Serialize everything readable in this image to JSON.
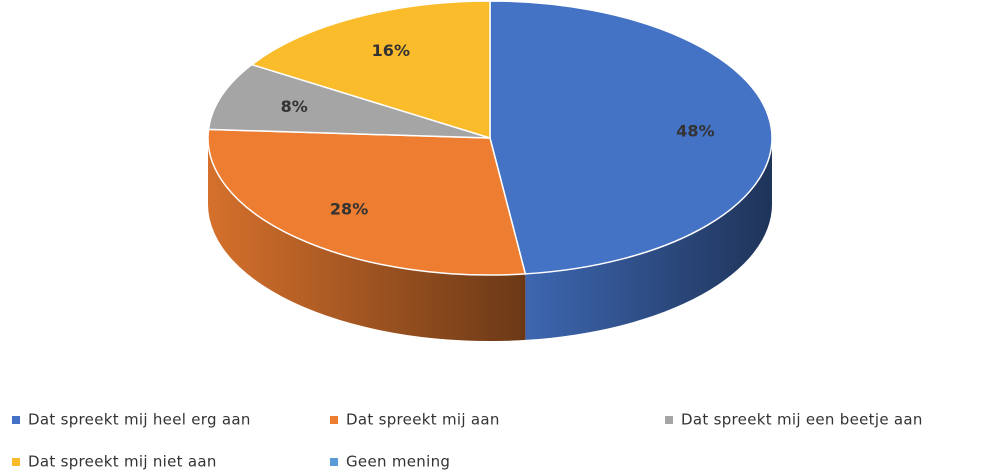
{
  "chart_data": {
    "type": "pie",
    "categories": [
      "Dat spreekt mij heel erg aan",
      "Dat spreekt mij aan",
      "Dat spreekt mij een beetje aan",
      "Dat spreekt mij niet aan",
      "Geen mening"
    ],
    "values": [
      48,
      28,
      8,
      16,
      0
    ],
    "value_labels": [
      "48%",
      "28%",
      "8%",
      "16%",
      null
    ],
    "colors": [
      "#4472c4",
      "#ed7d31",
      "#a5a5a5",
      "#fbbc2c",
      "#5b9bd5"
    ],
    "legend": "bottom"
  }
}
